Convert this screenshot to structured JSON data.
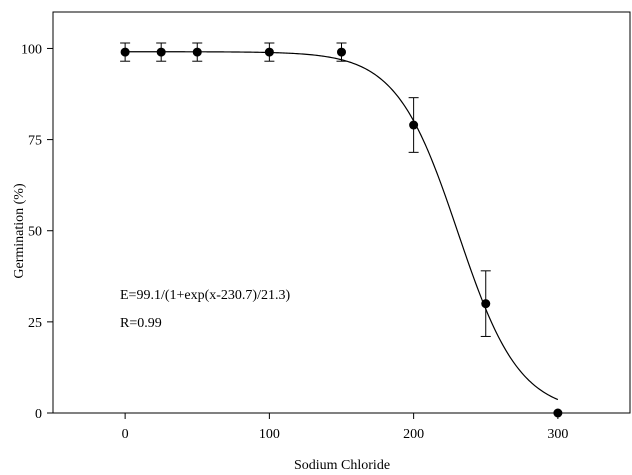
{
  "chart_data": {
    "type": "scatter",
    "xlabel": "Sodium Chloride",
    "ylabel": "Germination (%)",
    "xlim": [
      -50,
      350
    ],
    "ylim": [
      0,
      110
    ],
    "x_ticks": [
      0,
      100,
      200,
      300
    ],
    "y_ticks": [
      0,
      25,
      50,
      75,
      100
    ],
    "grid": false,
    "series": [
      {
        "points": [
          {
            "x": 0,
            "y": 99,
            "err": 2.5
          },
          {
            "x": 25,
            "y": 99,
            "err": 2.5
          },
          {
            "x": 50,
            "y": 99,
            "err": 2.5
          },
          {
            "x": 100,
            "y": 99,
            "err": 2.5
          },
          {
            "x": 150,
            "y": 99,
            "err": 2.5
          },
          {
            "x": 200,
            "y": 79,
            "err": 7.5
          },
          {
            "x": 250,
            "y": 30,
            "err": 9
          },
          {
            "x": 300,
            "y": 0,
            "err": 0
          }
        ]
      }
    ],
    "fit": {
      "type": "sigmoid",
      "a": 99.1,
      "x0": 230.7,
      "b": 21.3,
      "x_range": [
        0,
        300
      ]
    },
    "annotations": [
      "E=99.1/(1+exp(x-230.7)/21.3)",
      "R=0.99"
    ]
  }
}
